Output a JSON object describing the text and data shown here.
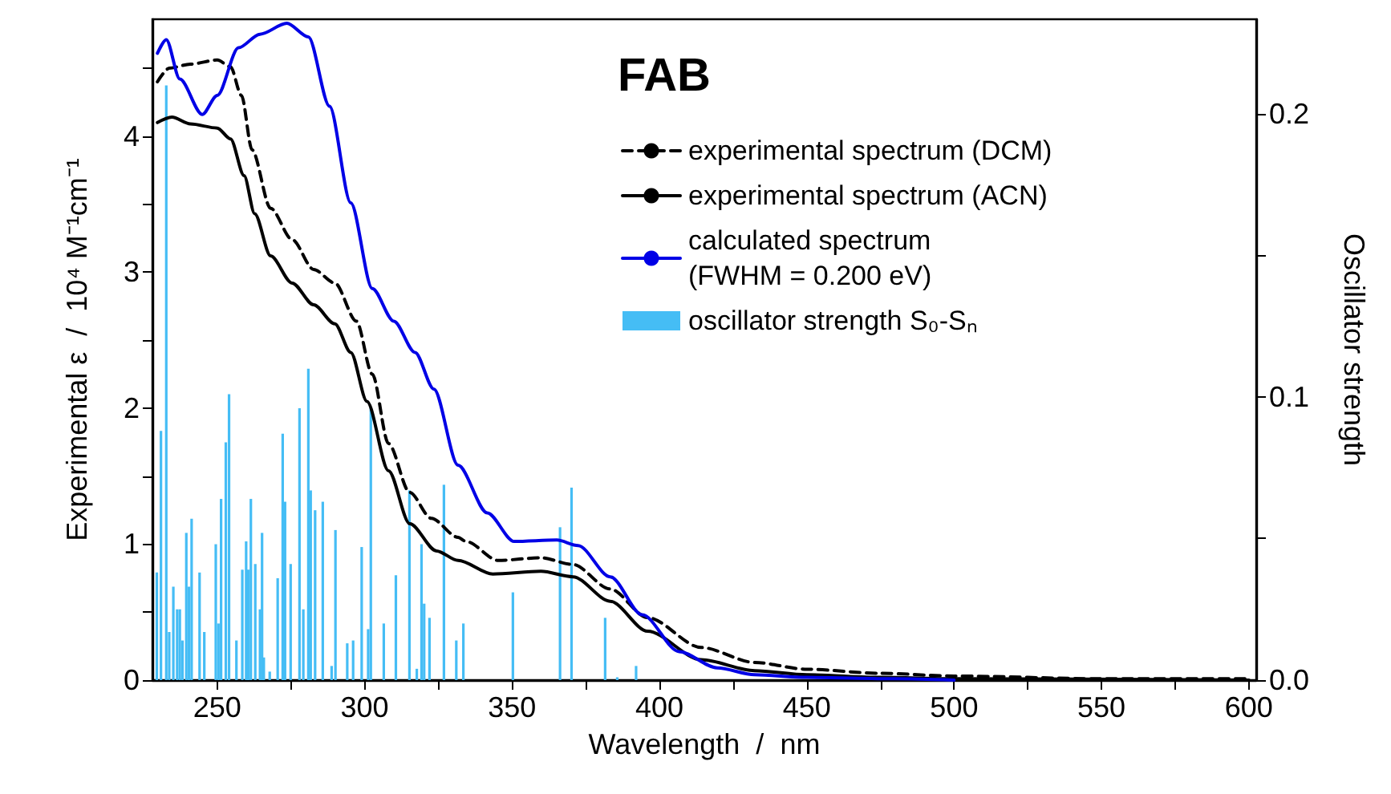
{
  "chart_data": {
    "type": "line",
    "title": "FAB",
    "xlabel": "Wavelength  /  nm",
    "ylabel": "Experimental ε  /  10⁴ M⁻¹cm⁻¹",
    "y2label": "Oscillator strength",
    "xlim": [
      228,
      602.5
    ],
    "xticks": [
      250,
      {
        "value": 275,
        "label": null
      },
      300,
      {
        "value": 325,
        "label": null
      },
      350,
      {
        "value": 375,
        "label": null
      },
      400,
      {
        "value": 425,
        "label": null
      },
      450,
      {
        "value": 475,
        "label": null
      },
      500,
      {
        "value": 525,
        "label": null
      },
      550,
      {
        "value": 575,
        "label": null
      },
      600
    ],
    "ylim": [
      0,
      4.86
    ],
    "yticks": [
      0,
      {
        "value": 0.5,
        "label": null
      },
      1,
      {
        "value": 1.5,
        "label": null
      },
      2,
      {
        "value": 2.5,
        "label": null
      },
      3,
      {
        "value": 3.5,
        "label": null
      },
      4,
      {
        "value": 4.5,
        "label": null
      }
    ],
    "y2lim": [
      0,
      0.2334
    ],
    "y2ticks": [
      {
        "value": 0,
        "label": "0.0"
      },
      {
        "value": 0.05,
        "label": null
      },
      0.1,
      {
        "value": 0.15,
        "label": null
      },
      0.2
    ],
    "grid": false,
    "legend": "top right",
    "marker": "none",
    "series": [
      {
        "name": "experimental spectrum (DCM)",
        "line_style": "dashed",
        "color": "#000000",
        "x": [
          229.7,
          233.7,
          240.9,
          250,
          254.5,
          258.2,
          261.8,
          268.1,
          275.4,
          282.7,
          289.9,
          297.2,
          302.6,
          308.1,
          315.3,
          322.6,
          331.7,
          334.4,
          345.3,
          359.8,
          370.7,
          383.3,
          396,
          414.2,
          432.3,
          450,
          475,
          500,
          550,
          600
        ],
        "values": [
          4.4,
          4.5,
          4.53,
          4.56,
          4.51,
          4.3,
          3.9,
          3.47,
          3.24,
          3.02,
          2.92,
          2.64,
          2.25,
          1.74,
          1.38,
          1.19,
          1.05,
          1.02,
          0.88,
          0.9,
          0.85,
          0.67,
          0.46,
          0.24,
          0.13,
          0.08,
          0.05,
          0.03,
          0.01,
          0.01
        ]
      },
      {
        "name": "experimental spectrum (ACN)",
        "line_style": "solid",
        "color": "#000000",
        "x": [
          229.7,
          234.6,
          240.9,
          250,
          254.5,
          259.1,
          262.7,
          268.1,
          275.4,
          282.7,
          289.9,
          295.3,
          300.8,
          308.1,
          315.3,
          324.4,
          331.7,
          343.5,
          359.8,
          370.7,
          383.3,
          396,
          414.2,
          432.3,
          450,
          475,
          500,
          600
        ],
        "values": [
          4.1,
          4.14,
          4.09,
          4.06,
          3.98,
          3.71,
          3.43,
          3.12,
          2.92,
          2.76,
          2.62,
          2.41,
          2.05,
          1.54,
          1.15,
          0.95,
          0.88,
          0.78,
          0.8,
          0.76,
          0.58,
          0.36,
          0.15,
          0.07,
          0.04,
          0.02,
          0.01,
          0
        ]
      },
      {
        "name": "calculated spectrum\n(FWHM = 0.200 eV)",
        "line_style": "solid",
        "color": "#0000e6",
        "x": [
          229.7,
          232.7,
          237.3,
          244.9,
          250,
          257.2,
          264.5,
          273.6,
          280.9,
          288.1,
          295.3,
          302.6,
          309.9,
          317.1,
          323.5,
          331.7,
          341.6,
          350.7,
          365.2,
          372.4,
          383.3,
          394.2,
          406.7,
          419.6,
          432.3,
          450,
          480,
          500
        ],
        "values": [
          4.61,
          4.71,
          4.42,
          4.16,
          4.3,
          4.65,
          4.75,
          4.83,
          4.73,
          4.22,
          3.51,
          2.88,
          2.64,
          2.41,
          2.14,
          1.58,
          1.23,
          1.02,
          1.03,
          0.99,
          0.76,
          0.48,
          0.21,
          0.09,
          0.04,
          0.02,
          0.01,
          0
        ]
      },
      {
        "name": "oscillator strength S₀-Sₙ",
        "type": "bar",
        "axis": "y2",
        "color": "#45bdf5",
        "x": [
          229.5,
          230.9,
          232.7,
          233.7,
          235.1,
          236.4,
          237.3,
          238.2,
          239.5,
          240.4,
          241.3,
          244.0,
          245.6,
          249.5,
          250.4,
          251.3,
          252.9,
          254.0,
          256.5,
          258.5,
          259.8,
          260.5,
          261.4,
          262.9,
          264.5,
          265.2,
          265.8,
          267.8,
          270.5,
          272.2,
          273.0,
          274.9,
          277.9,
          279.2,
          280.9,
          281.7,
          283.2,
          285.8,
          288.8,
          290.1,
          294.1,
          296.1,
          299.0,
          301.2,
          302.1,
          306.5,
          310.6,
          315.2,
          317.7,
          319.3,
          320.2,
          322.0,
          326.9,
          331.1,
          333.5,
          350.3,
          366.3,
          370.2,
          381.6,
          385.7,
          392.1
        ],
        "values": [
          0.038,
          0.088,
          0.21,
          0.017,
          0.033,
          0.025,
          0.025,
          0.014,
          0.052,
          0.033,
          0.057,
          0.038,
          0.017,
          0.048,
          0.02,
          0.064,
          0.084,
          0.101,
          0.014,
          0.039,
          0.049,
          0.039,
          0.064,
          0.041,
          0.025,
          0.052,
          0.008,
          0.003,
          0.036,
          0.087,
          0.063,
          0.041,
          0.096,
          0.025,
          0.11,
          0.067,
          0.06,
          0.063,
          0.005,
          0.053,
          0.013,
          0.014,
          0.047,
          0.018,
          0.096,
          0.02,
          0.037,
          0.067,
          0.004,
          0.048,
          0.027,
          0.022,
          0.069,
          0.014,
          0.02,
          0.031,
          0.054,
          0.068,
          0.022,
          0.001,
          0.005
        ]
      }
    ]
  }
}
